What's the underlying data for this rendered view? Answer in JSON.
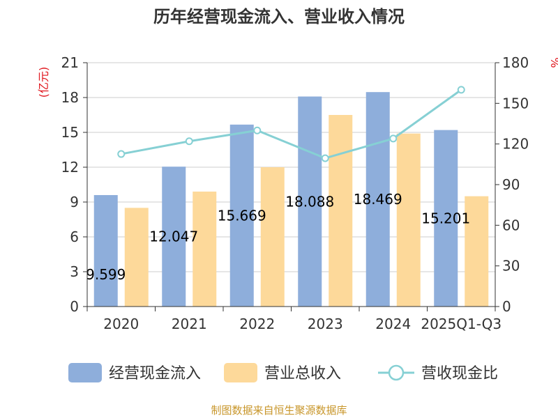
{
  "chart_data": {
    "type": "bar",
    "title": "历年经营现金流入、营业收入情况",
    "categories": [
      "2020",
      "2021",
      "2022",
      "2023",
      "2024",
      "2025Q1-Q3"
    ],
    "y_left": {
      "unit": "(亿元)",
      "range": [
        0,
        21
      ],
      "ticks": [
        "0",
        "3",
        "6",
        "9",
        "12",
        "15",
        "18",
        "21"
      ]
    },
    "y_right": {
      "unit": "%",
      "range": [
        0,
        180
      ],
      "ticks": [
        "0",
        "30",
        "60",
        "90",
        "120",
        "150",
        "180"
      ]
    },
    "grid": true,
    "legend_position": "bottom",
    "series": [
      {
        "name": "经营现金流入",
        "type": "bar",
        "axis": "left",
        "color": "#8eaedb",
        "values": [
          9.599,
          12.047,
          15.669,
          18.088,
          18.469,
          15.201
        ],
        "labels": [
          "9.599",
          "12.047",
          "15.669",
          "18.088",
          "18.469",
          "15.201"
        ]
      },
      {
        "name": "营业总收入",
        "type": "bar",
        "axis": "left",
        "color": "#fdd99a",
        "values": [
          8.5,
          9.9,
          12.0,
          16.5,
          14.9,
          9.5
        ]
      },
      {
        "name": "营收现金比",
        "type": "line",
        "axis": "right",
        "color": "#86d0d4",
        "values": [
          112.6,
          122.0,
          130.0,
          109.5,
          124.0,
          160.0
        ]
      }
    ]
  },
  "source": "制图数据来自恒生聚源数据库"
}
